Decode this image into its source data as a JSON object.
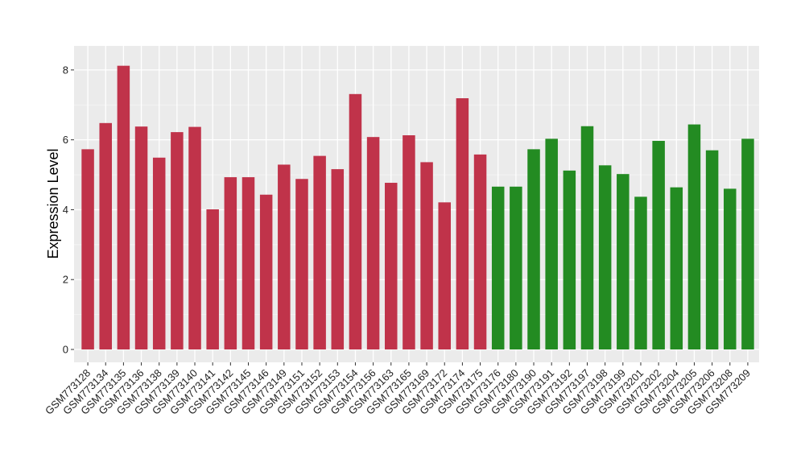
{
  "chart_data": {
    "type": "bar",
    "title": "",
    "xlabel": "",
    "ylabel": "Expression Level",
    "ylim": [
      0,
      8.55
    ],
    "yticks": [
      0,
      2,
      4,
      6,
      8
    ],
    "grid": true,
    "legend": "none",
    "colors": {
      "group_a": "#c0334a",
      "group_b": "#238b22",
      "panel_bg": "#ebebeb",
      "grid_major": "#ffffff"
    },
    "categories": [
      "GSM773128",
      "GSM773134",
      "GSM773135",
      "GSM773136",
      "GSM773138",
      "GSM773139",
      "GSM773140",
      "GSM773141",
      "GSM773142",
      "GSM773145",
      "GSM773146",
      "GSM773149",
      "GSM773151",
      "GSM773152",
      "GSM773153",
      "GSM773154",
      "GSM773156",
      "GSM773163",
      "GSM773165",
      "GSM773169",
      "GSM773172",
      "GSM773174",
      "GSM773175",
      "GSM773176",
      "GSM773180",
      "GSM773190",
      "GSM773191",
      "GSM773192",
      "GSM773197",
      "GSM773198",
      "GSM773199",
      "GSM773201",
      "GSM773202",
      "GSM773204",
      "GSM773205",
      "GSM773206",
      "GSM773208",
      "GSM773209"
    ],
    "values": [
      5.73,
      6.48,
      8.12,
      6.38,
      5.49,
      6.22,
      6.37,
      4.01,
      4.93,
      4.93,
      4.43,
      5.29,
      4.88,
      5.54,
      5.16,
      7.31,
      6.08,
      4.77,
      6.13,
      5.36,
      4.21,
      7.19,
      5.58,
      4.66,
      4.66,
      5.73,
      6.03,
      5.12,
      6.39,
      5.27,
      5.02,
      4.37,
      5.97,
      4.64,
      6.44,
      5.7,
      4.6,
      6.03
    ],
    "groups": [
      "a",
      "a",
      "a",
      "a",
      "a",
      "a",
      "a",
      "a",
      "a",
      "a",
      "a",
      "a",
      "a",
      "a",
      "a",
      "a",
      "a",
      "a",
      "a",
      "a",
      "a",
      "a",
      "a",
      "b",
      "b",
      "b",
      "b",
      "b",
      "b",
      "b",
      "b",
      "b",
      "b",
      "b",
      "b",
      "b",
      "b",
      "b"
    ]
  }
}
